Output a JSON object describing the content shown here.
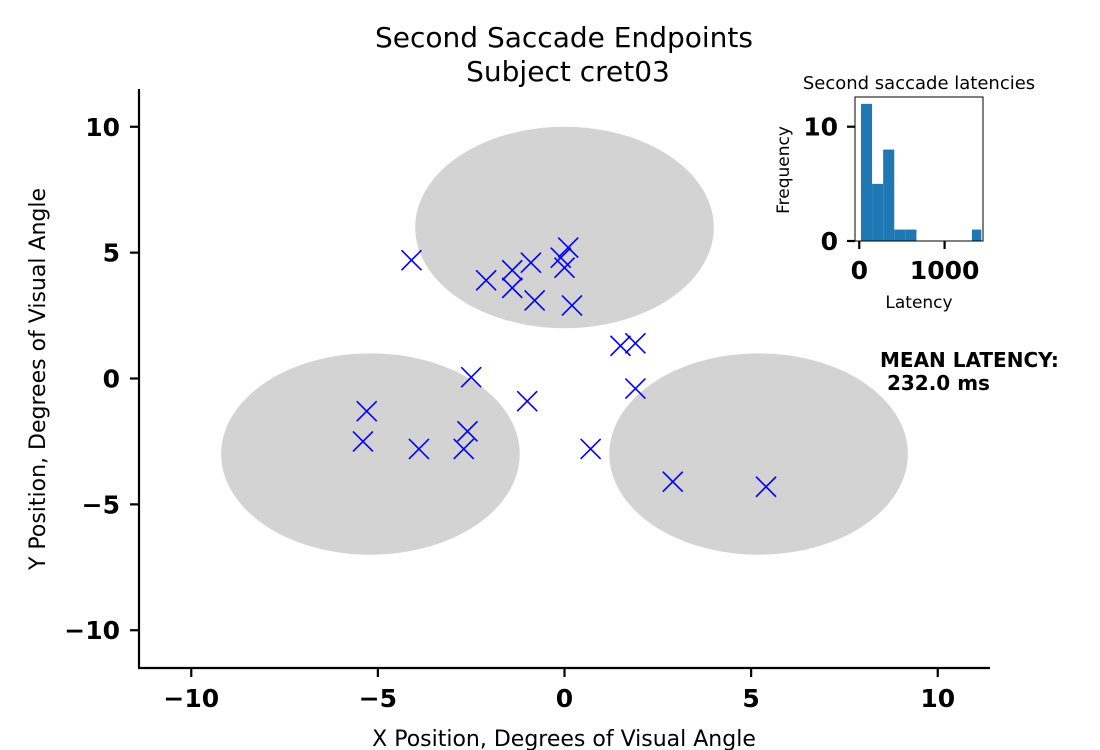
{
  "chart_data": [
    {
      "type": "scatter",
      "title": "Second Saccade Endpoints",
      "subtitle": "Subject cret03",
      "xlabel": "X Position, Degrees of Visual Angle",
      "ylabel": "Y Position, Degrees of Visual Angle",
      "xlim": [
        -11.4,
        11.4
      ],
      "ylim": [
        -11.5,
        11.5
      ],
      "xticks": [
        -10,
        -5,
        0,
        5,
        10
      ],
      "yticks": [
        -10,
        -5,
        0,
        5,
        10
      ],
      "xtick_labels": [
        "−10",
        "−5",
        "0",
        "5",
        "10"
      ],
      "ytick_labels": [
        "−10",
        "−5",
        "0",
        "5",
        "10"
      ],
      "grid": false,
      "marker": "x",
      "marker_color": "#0000ff",
      "region_color": "#d3d3d3",
      "regions": [
        {
          "cx": 0,
          "cy": 6,
          "rx": 4,
          "ry": 4
        },
        {
          "cx": -5.2,
          "cy": -3,
          "rx": 4,
          "ry": 4
        },
        {
          "cx": 5.2,
          "cy": -3,
          "rx": 4,
          "ry": 4
        }
      ],
      "points": [
        {
          "x": -4.1,
          "y": 4.7
        },
        {
          "x": -2.1,
          "y": 3.9
        },
        {
          "x": -1.4,
          "y": 4.3
        },
        {
          "x": -1.4,
          "y": 3.6
        },
        {
          "x": -0.9,
          "y": 4.6
        },
        {
          "x": -0.8,
          "y": 3.1
        },
        {
          "x": -0.1,
          "y": 4.8
        },
        {
          "x": 0.1,
          "y": 5.2
        },
        {
          "x": 0.0,
          "y": 4.4
        },
        {
          "x": 0.2,
          "y": 2.9
        },
        {
          "x": -2.5,
          "y": 0.05
        },
        {
          "x": -1.0,
          "y": -0.9
        },
        {
          "x": 1.5,
          "y": 1.3
        },
        {
          "x": 1.9,
          "y": 1.4
        },
        {
          "x": 1.9,
          "y": -0.4
        },
        {
          "x": 0.7,
          "y": -2.8
        },
        {
          "x": -5.3,
          "y": -1.3
        },
        {
          "x": -5.4,
          "y": -2.5
        },
        {
          "x": -3.9,
          "y": -2.8
        },
        {
          "x": -2.6,
          "y": -2.1
        },
        {
          "x": -2.7,
          "y": -2.8
        },
        {
          "x": 2.9,
          "y": -4.1
        },
        {
          "x": 5.4,
          "y": -4.3
        }
      ]
    },
    {
      "type": "bar",
      "title": "Second saccade latencies",
      "xlabel": "Latency",
      "ylabel": "Frequency",
      "xlim": [
        -50,
        1450
      ],
      "ylim": [
        0,
        12.6
      ],
      "xticks": [
        0,
        1000
      ],
      "yticks": [
        0,
        10
      ],
      "xtick_labels": [
        "0",
        "1000"
      ],
      "ytick_labels": [
        "0",
        "10"
      ],
      "bar_color": "#1f77b4",
      "bins": [
        {
          "start": 20,
          "end": 150,
          "count": 12
        },
        {
          "start": 150,
          "end": 280,
          "count": 5
        },
        {
          "start": 280,
          "end": 410,
          "count": 8
        },
        {
          "start": 410,
          "end": 540,
          "count": 1
        },
        {
          "start": 540,
          "end": 670,
          "count": 1
        },
        {
          "start": 670,
          "end": 800,
          "count": 0
        },
        {
          "start": 800,
          "end": 930,
          "count": 0
        },
        {
          "start": 930,
          "end": 1060,
          "count": 0
        },
        {
          "start": 1060,
          "end": 1190,
          "count": 0
        },
        {
          "start": 1190,
          "end": 1320,
          "count": 0
        },
        {
          "start": 1320,
          "end": 1430,
          "count": 1
        }
      ]
    }
  ],
  "annotation": {
    "line1": "MEAN LATENCY:",
    "line2": " 232.0 ms"
  }
}
